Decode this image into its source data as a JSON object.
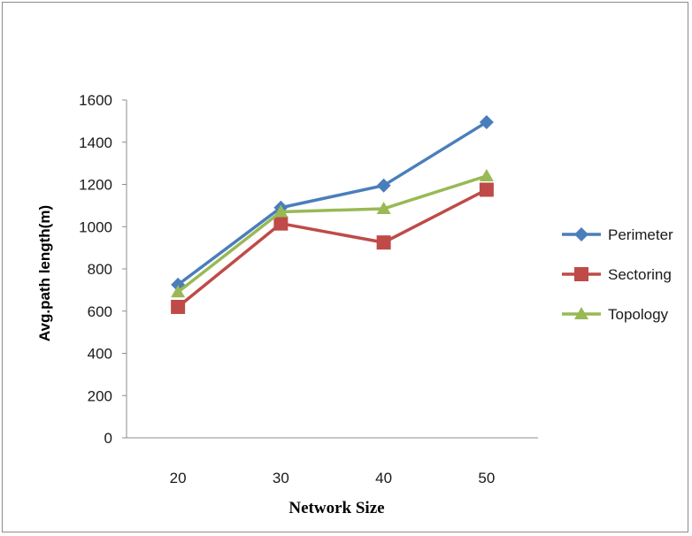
{
  "chart_data": {
    "type": "line",
    "title": "",
    "xlabel": "Network Size",
    "ylabel": "Avg.path length(m)",
    "categories": [
      "20",
      "30",
      "40",
      "50"
    ],
    "ylim": [
      0,
      1600
    ],
    "yticks": [
      "0",
      "200",
      "400",
      "600",
      "800",
      "1000",
      "1200",
      "1400",
      "1600"
    ],
    "grid": false,
    "legend_position": "right",
    "series": [
      {
        "name": "Perimeter",
        "values": [
          725,
          1090,
          1195,
          1495
        ],
        "color": "#4a7ebb",
        "marker": "diamond"
      },
      {
        "name": "Sectoring",
        "values": [
          620,
          1015,
          925,
          1175
        ],
        "color": "#be4b48",
        "marker": "square"
      },
      {
        "name": "Topology",
        "values": [
          690,
          1070,
          1085,
          1240
        ],
        "color": "#98b954",
        "marker": "triangle"
      }
    ]
  }
}
